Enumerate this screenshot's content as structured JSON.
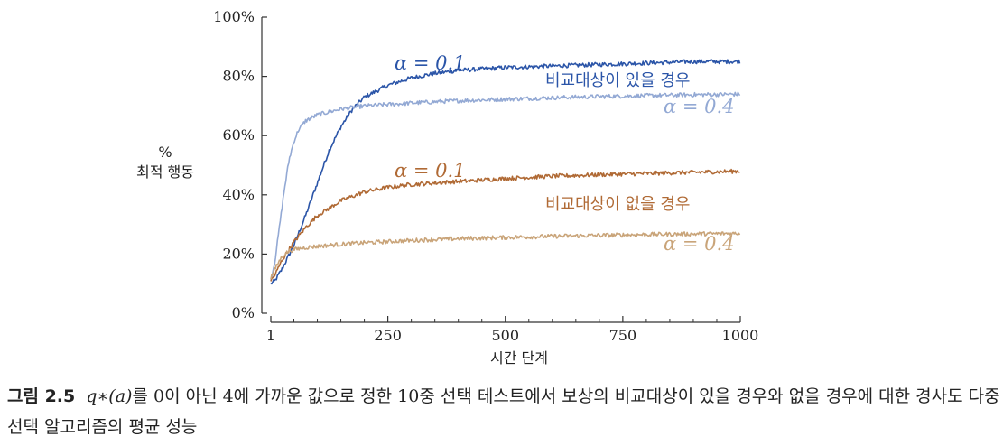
{
  "chart_data": {
    "type": "line",
    "ylabel": [
      "%",
      "최적 행동"
    ],
    "xlabel": "시간 단계",
    "xlim": [
      1,
      1000
    ],
    "ylim": [
      0,
      100
    ],
    "xticks": [
      "1",
      "250",
      "500",
      "750",
      "1000"
    ],
    "yticks": [
      "0%",
      "20%",
      "40%",
      "60%",
      "80%",
      "100%"
    ],
    "series": [
      {
        "name": "비교대상이 있을 경우, α = 0.1",
        "color": "#2b55a8",
        "x": [
          1,
          10,
          25,
          50,
          75,
          100,
          125,
          150,
          175,
          200,
          250,
          300,
          350,
          400,
          500,
          600,
          700,
          800,
          900,
          1000
        ],
        "y": [
          10,
          11,
          15,
          23,
          33,
          44,
          55,
          63,
          69,
          73,
          77,
          79.5,
          81,
          82,
          83,
          83.5,
          84,
          84.5,
          85,
          85
        ]
      },
      {
        "name": "비교대상이 있을 경우, α = 0.4",
        "color": "#93a9d4",
        "x": [
          1,
          10,
          20,
          30,
          40,
          50,
          60,
          75,
          100,
          125,
          150,
          200,
          300,
          400,
          500,
          600,
          700,
          800,
          900,
          1000
        ],
        "y": [
          11,
          18,
          30,
          42,
          52,
          58,
          62,
          65,
          67,
          68,
          69,
          70,
          71,
          71.8,
          72.3,
          72.8,
          73.2,
          73.5,
          73.8,
          74
        ]
      },
      {
        "name": "비교대상이 없을 경우, α = 0.1",
        "color": "#b06a35",
        "x": [
          1,
          10,
          25,
          50,
          75,
          100,
          150,
          200,
          250,
          300,
          400,
          500,
          600,
          700,
          800,
          900,
          1000
        ],
        "y": [
          11,
          13,
          18,
          24,
          29,
          33,
          38,
          41,
          42.5,
          43.5,
          44.5,
          45.5,
          46.3,
          46.8,
          47.2,
          47.6,
          48
        ]
      },
      {
        "name": "비교대상이 없을 경우, α = 0.4",
        "color": "#c9a479",
        "x": [
          1,
          10,
          20,
          30,
          40,
          50,
          75,
          100,
          150,
          200,
          300,
          400,
          500,
          600,
          700,
          800,
          900,
          1000
        ],
        "y": [
          12,
          15,
          18,
          20,
          21,
          21.5,
          22.2,
          22.6,
          23.3,
          23.8,
          24.6,
          25.2,
          25.6,
          26,
          26.3,
          26.6,
          26.8,
          27
        ]
      }
    ],
    "annotations": {
      "group_with_baseline": "비교대상이 있을 경우",
      "group_without_baseline": "비교대상이 없을 경우",
      "alpha_high": "α = 0.1",
      "alpha_low": "α = 0.4"
    }
  },
  "caption": {
    "figure_number": "그림 2.5",
    "math": "q∗(a)",
    "text": "를 0이 아닌 4에 가까운 값으로 정한 10중 선택 테스트에서 보상의 비교대상이 있을 경우와 없을 경우에 대한 경사도 다중 선택 알고리즘의 평균 성능"
  }
}
